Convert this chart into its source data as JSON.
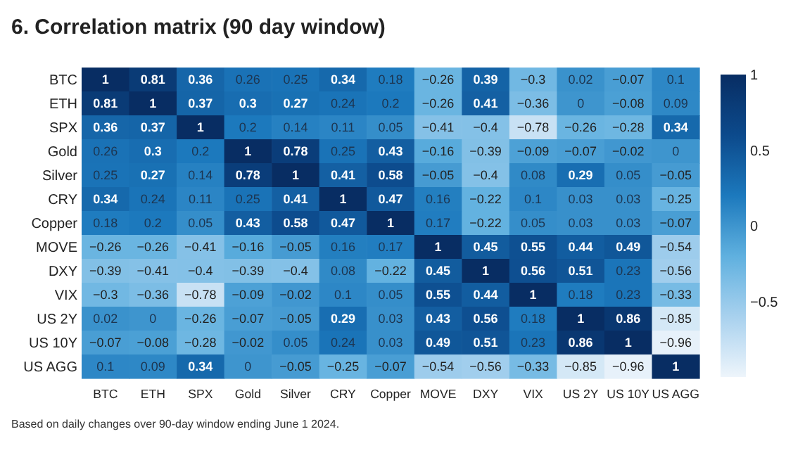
{
  "chart_data": {
    "type": "heatmap",
    "title": "6. Correlation matrix (90 day window)",
    "categories": [
      "BTC",
      "ETH",
      "SPX",
      "Gold",
      "Silver",
      "CRY",
      "Copper",
      "MOVE",
      "DXY",
      "VIX",
      "US 2Y",
      "US 10Y",
      "US AGG"
    ],
    "y_categories": [
      "BTC",
      "ETH",
      "SPX",
      "Gold",
      "Silver",
      "CRY",
      "Copper",
      "MOVE",
      "DXY",
      "VIX",
      "US 2Y",
      "US 10Y",
      "US AGG"
    ],
    "cells": [
      [
        1,
        0.81,
        0.36,
        0.26,
        0.25,
        0.34,
        0.18,
        -0.26,
        0.39,
        -0.3,
        0.02,
        -0.07,
        0.1
      ],
      [
        0.81,
        1,
        0.37,
        0.3,
        0.27,
        0.24,
        0.2,
        -0.26,
        0.41,
        -0.36,
        0,
        -0.08,
        0.09
      ],
      [
        0.36,
        0.37,
        1,
        0.2,
        0.14,
        0.11,
        0.05,
        -0.41,
        -0.4,
        -0.78,
        -0.26,
        -0.28,
        0.34
      ],
      [
        0.26,
        0.3,
        0.2,
        1,
        0.78,
        0.25,
        0.43,
        -0.16,
        -0.39,
        -0.09,
        -0.07,
        -0.02,
        0
      ],
      [
        0.25,
        0.27,
        0.14,
        0.78,
        1,
        0.41,
        0.58,
        -0.05,
        -0.4,
        0.08,
        0.29,
        0.05,
        -0.05
      ],
      [
        0.34,
        0.24,
        0.11,
        0.25,
        0.41,
        1,
        0.47,
        0.16,
        -0.22,
        0.1,
        0.03,
        0.03,
        -0.25
      ],
      [
        0.18,
        0.2,
        0.05,
        0.43,
        0.58,
        0.47,
        1,
        0.17,
        -0.22,
        0.05,
        0.03,
        0.03,
        -0.07
      ],
      [
        -0.26,
        -0.26,
        -0.41,
        -0.16,
        -0.05,
        0.16,
        0.17,
        1,
        0.45,
        0.55,
        0.44,
        0.49,
        -0.54
      ],
      [
        -0.39,
        -0.41,
        -0.4,
        -0.39,
        -0.4,
        0.08,
        -0.22,
        0.45,
        1,
        0.56,
        0.51,
        0.23,
        -0.56
      ],
      [
        -0.3,
        -0.36,
        -0.78,
        -0.09,
        -0.02,
        0.1,
        0.05,
        0.55,
        0.44,
        1,
        0.18,
        0.23,
        -0.33
      ],
      [
        0.02,
        0,
        -0.26,
        -0.07,
        -0.05,
        0.29,
        0.03,
        0.43,
        0.56,
        0.18,
        1,
        0.86,
        -0.85
      ],
      [
        -0.07,
        -0.08,
        -0.28,
        -0.02,
        0.05,
        0.24,
        0.03,
        0.49,
        0.51,
        0.23,
        0.86,
        1,
        -0.96
      ],
      [
        0.1,
        0.09,
        0.34,
        0,
        -0.05,
        -0.25,
        -0.07,
        -0.54,
        -0.56,
        -0.33,
        -0.85,
        -0.96,
        1
      ]
    ],
    "data_labels": true,
    "clim": [
      -1,
      1
    ],
    "cticks": [
      -0.5,
      0,
      0.5,
      1
    ],
    "annotations": [
      "Based on daily changes over 90-day window ending June 1 2024."
    ]
  }
}
